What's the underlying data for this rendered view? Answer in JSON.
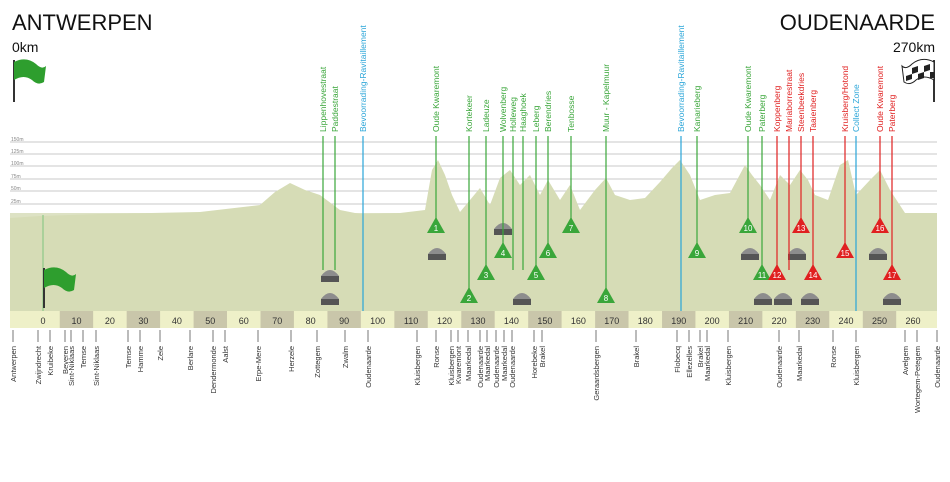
{
  "header": {
    "start": "ANTWERPEN",
    "start_km": "0km",
    "end": "OUDENAARDE",
    "end_km": "270km"
  },
  "altitude_labels": [
    "150m",
    "125m",
    "100m",
    "75m",
    "50m",
    "25m"
  ],
  "km_ticks": [
    "0",
    "10",
    "20",
    "30",
    "40",
    "50",
    "60",
    "70",
    "80",
    "90",
    "100",
    "110",
    "120",
    "130",
    "140",
    "150",
    "160",
    "170",
    "180",
    "190",
    "200",
    "210",
    "220",
    "230",
    "240",
    "250",
    "260"
  ],
  "route_markers": [
    {
      "name": "Lippenhovestraat",
      "color": "#3aa63a"
    },
    {
      "name": "Paddestraat",
      "color": "#3aa63a"
    },
    {
      "name": "Bevoorrading-Ravitaillement",
      "color": "#2aa5d8"
    },
    {
      "name": "Oude Kwaremont",
      "color": "#3aa63a",
      "number": "1"
    },
    {
      "name": "Kortekeer",
      "color": "#3aa63a",
      "number": "2"
    },
    {
      "name": "Ladeuze",
      "color": "#3aa63a",
      "number": "3"
    },
    {
      "name": "Wolvenberg",
      "color": "#3aa63a",
      "number": "4"
    },
    {
      "name": "Holleweg",
      "color": "#3aa63a"
    },
    {
      "name": "Haaghoek",
      "color": "#3aa63a"
    },
    {
      "name": "Leberg",
      "color": "#3aa63a",
      "number": "5"
    },
    {
      "name": "Berendries",
      "color": "#3aa63a",
      "number": "6"
    },
    {
      "name": "Tenbosse",
      "color": "#3aa63a",
      "number": "7"
    },
    {
      "name": "Muur - Kapelmuur",
      "color": "#3aa63a",
      "number": "8"
    },
    {
      "name": "Bevoorrading-Ravitaillement",
      "color": "#2aa5d8"
    },
    {
      "name": "Kanarieberg",
      "color": "#3aa63a",
      "number": "9"
    },
    {
      "name": "Oude Kwaremont",
      "color": "#3aa63a",
      "number": "10"
    },
    {
      "name": "Paterberg",
      "color": "#3aa63a",
      "number": "11"
    },
    {
      "name": "Koppenberg",
      "color": "#e02020",
      "number": "12"
    },
    {
      "name": "Mariaborrestraat",
      "color": "#e02020"
    },
    {
      "name": "Steenbeekdries",
      "color": "#e02020",
      "number": "13"
    },
    {
      "name": "Taaienberg",
      "color": "#e02020",
      "number": "14"
    },
    {
      "name": "Kruisberg/Hotond",
      "color": "#e02020",
      "number": "15"
    },
    {
      "name": "Collect Zone",
      "color": "#2aa5d8"
    },
    {
      "name": "Oude Kwaremont",
      "color": "#e02020",
      "number": "16"
    },
    {
      "name": "Paterberg",
      "color": "#e02020",
      "number": "17"
    }
  ],
  "towns": [
    "Antwerpen",
    "Zwijndrecht",
    "Kruibeke",
    "Beveren",
    "Sint-Niklaas",
    "Temse",
    "Sint-Niklaas",
    "Temse",
    "Hamme",
    "Zele",
    "Berlare",
    "Dendermonde",
    "Aalst",
    "Erpe-Mere",
    "Herzele",
    "Zottegem",
    "Zwalm",
    "Oudenaarde",
    "Kluisbergen",
    "Ronse",
    "Kluisbergen",
    "Kwaremont",
    "Maarkedal",
    "Oudenaarde",
    "Maarkedal",
    "Oudenaarde",
    "Maarkedal",
    "Oudenaarde",
    "Horebeke",
    "Brakel",
    "Geraardsbergen",
    "Brakel",
    "Flobecq",
    "Ellezelles",
    "Brakel",
    "Maarkedal",
    "Kluisbergen",
    "Oudenaarde",
    "Maarkedal",
    "Ronse",
    "Kluisbergen",
    "Avelgem",
    "Wortegem-Petegem",
    "Oudenaarde"
  ]
}
